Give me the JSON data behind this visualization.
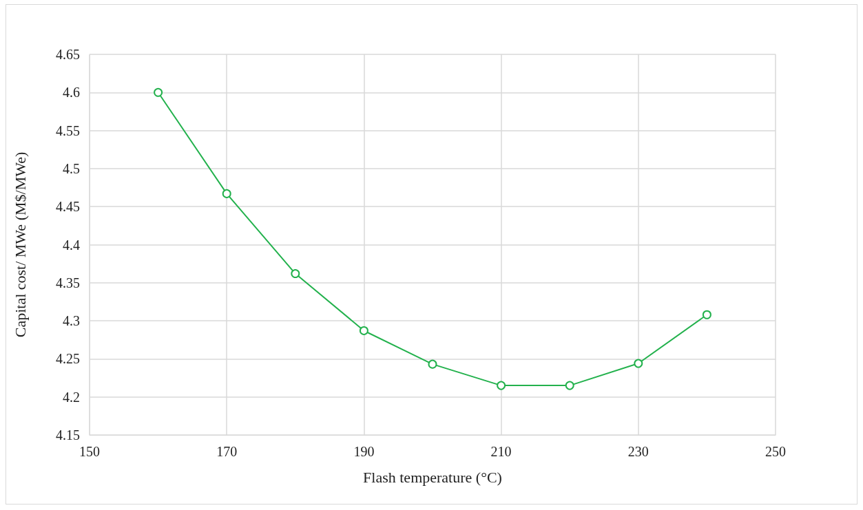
{
  "chart_data": {
    "type": "line",
    "xlabel": "Flash temperature (°C)",
    "ylabel": "Capital cost/ MWe (M$/MWe)",
    "x": [
      160,
      170,
      180,
      190,
      200,
      210,
      220,
      230,
      240
    ],
    "series": [
      {
        "color": "#22b14c",
        "values": [
          4.6,
          4.467,
          4.362,
          4.287,
          4.243,
          4.215,
          4.215,
          4.244,
          4.308
        ]
      }
    ],
    "xlim": [
      150,
      250
    ],
    "xticks": [
      150,
      170,
      190,
      210,
      230,
      250
    ],
    "ylim": [
      4.15,
      4.65
    ],
    "yticks": [
      4.15,
      4.2,
      4.25,
      4.3,
      4.35,
      4.4,
      4.45,
      4.5,
      4.55,
      4.6,
      4.65
    ],
    "grid": true,
    "marker": "circle",
    "line_style": "solid"
  }
}
